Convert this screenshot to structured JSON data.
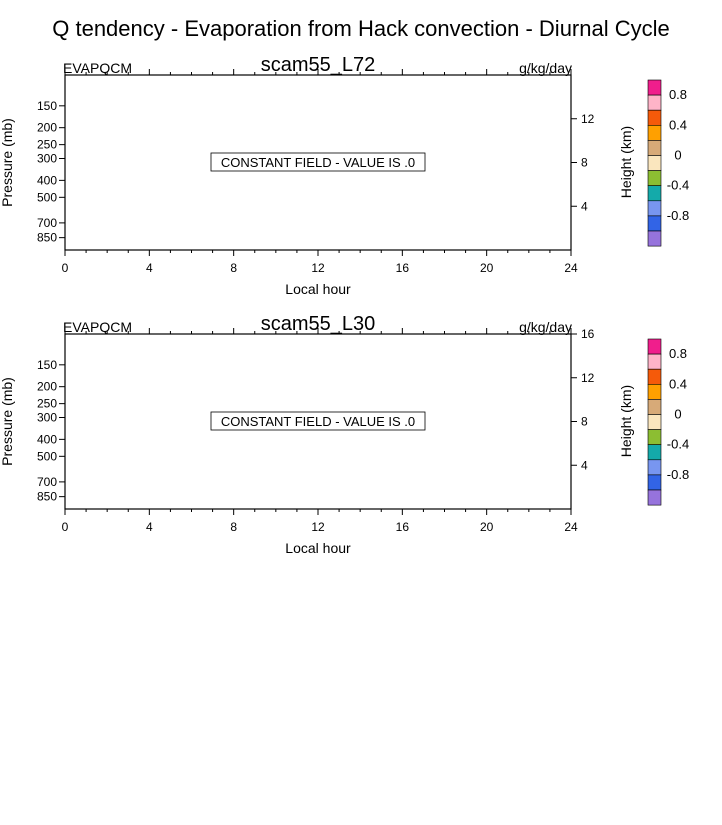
{
  "title": "Q tendency - Evaporation from Hack convection - Diurnal Cycle",
  "chart_data": [
    {
      "type": "heatmap",
      "title": "scam55_L72",
      "left_label": "EVAPQCM",
      "right_label": "g/kg/day",
      "xlabel": "Local hour",
      "ylabel": "Pressure (mb)",
      "ylabel_right": "Height (km)",
      "xlim": [
        0,
        24
      ],
      "xticks": [
        0,
        4,
        8,
        12,
        16,
        20,
        24
      ],
      "xtick_labels": [
        "0",
        "4",
        "8",
        "12",
        "16",
        "20",
        "24"
      ],
      "pressure_ticks": [
        150,
        200,
        250,
        300,
        400,
        500,
        700,
        850
      ],
      "pressure_tick_labels": [
        "150",
        "200",
        "250",
        "300",
        "400",
        "500",
        "700",
        "850"
      ],
      "height_ticks": [
        4,
        8,
        12
      ],
      "height_tick_labels": [
        "4",
        "8",
        "12"
      ],
      "annotation": "CONSTANT FIELD - VALUE IS .0",
      "colorbar": {
        "labels": [
          "0.8",
          "0.4",
          "0",
          "-0.4",
          "-0.8"
        ],
        "colors": [
          "#f01e8c",
          "#ffb4c8",
          "#f55a0a",
          "#ffa000",
          "#d7aa78",
          "#fae6be",
          "#8cbe32",
          "#14aaaa",
          "#7896f0",
          "#3264e6",
          "#9673dc"
        ]
      }
    },
    {
      "type": "heatmap",
      "title": "scam55_L30",
      "left_label": "EVAPQCM",
      "right_label": "g/kg/day",
      "xlabel": "Local hour",
      "ylabel": "Pressure (mb)",
      "ylabel_right": "Height (km)",
      "xlim": [
        0,
        24
      ],
      "xticks": [
        0,
        4,
        8,
        12,
        16,
        20,
        24
      ],
      "xtick_labels": [
        "0",
        "4",
        "8",
        "12",
        "16",
        "20",
        "24"
      ],
      "pressure_ticks": [
        150,
        200,
        250,
        300,
        400,
        500,
        700,
        850
      ],
      "pressure_tick_labels": [
        "150",
        "200",
        "250",
        "300",
        "400",
        "500",
        "700",
        "850"
      ],
      "height_ticks": [
        4,
        8,
        12,
        16
      ],
      "height_tick_labels": [
        "4",
        "8",
        "12",
        "16"
      ],
      "annotation": "CONSTANT FIELD - VALUE IS .0",
      "colorbar": {
        "labels": [
          "0.8",
          "0.4",
          "0",
          "-0.4",
          "-0.8"
        ],
        "colors": [
          "#f01e8c",
          "#ffb4c8",
          "#f55a0a",
          "#ffa000",
          "#d7aa78",
          "#fae6be",
          "#8cbe32",
          "#14aaaa",
          "#7896f0",
          "#3264e6",
          "#9673dc"
        ]
      }
    }
  ]
}
